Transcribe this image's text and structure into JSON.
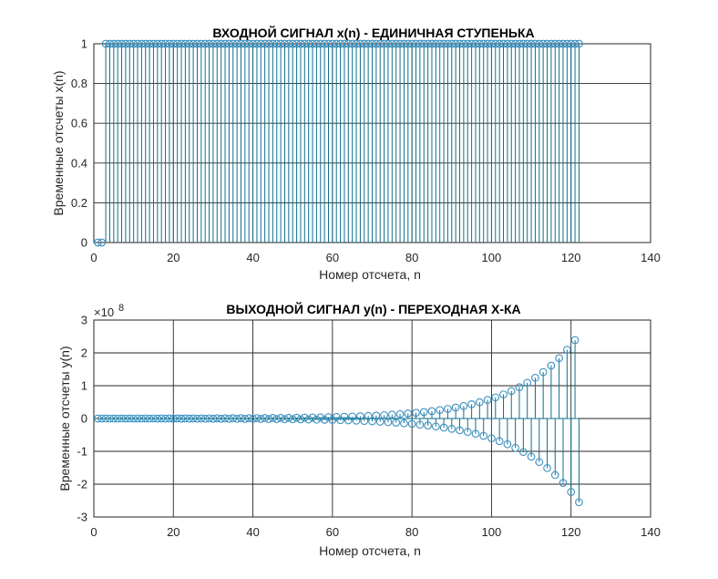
{
  "colors": {
    "stem": "#0e6f8a",
    "marker": "#3a8fbf",
    "axis": "#262626",
    "background": "#ffffff"
  },
  "chart_data": [
    {
      "type": "stem",
      "title": "ВХОДНОЙ СИГНАЛ x(n)  - ЕДИНИЧНАЯ СТУПЕНЬКА",
      "xlabel": "Номер отсчета, n",
      "ylabel": "Временные отсчеты x(n)",
      "xlim": [
        0,
        140
      ],
      "ylim": [
        0,
        1
      ],
      "xticks": [
        "0",
        "20",
        "40",
        "60",
        "80",
        "100",
        "120",
        "140"
      ],
      "yticks": [
        "0",
        "0.2",
        "0.4",
        "0.6",
        "0.8",
        "1"
      ],
      "grid": true,
      "exponent_label": "",
      "n_start": 1,
      "n_end": 122,
      "values_rule": "x(n) = 0 for n = 1, 2; x(n) = 1 for n = 3 … 122",
      "zero_until": 2,
      "step_value": 1
    },
    {
      "type": "stem",
      "title": "ВЫХОДНОЙ СИГНАЛ y(n) - ПЕРЕХОДНАЯ Х-КА",
      "xlabel": "Номер отсчета, n",
      "ylabel": "Временные отсчеты y(n)",
      "xlim": [
        0,
        140
      ],
      "ylim": [
        -300000000.0,
        300000000.0
      ],
      "xticks": [
        "0",
        "20",
        "40",
        "60",
        "80",
        "100",
        "120",
        "140"
      ],
      "yticks": [
        "-3",
        "-2",
        "-1",
        "0",
        "1",
        "2",
        "3"
      ],
      "grid": true,
      "exponent_base": "×10",
      "exponent_power": "8",
      "n_start": 1,
      "n_end": 122,
      "values_rule": "oscillating response with geometrically growing amplitude; sign alternates every sample from n ≈ 100",
      "envelope": {
        "anchor_n": 122,
        "anchor_value": -255000000.0,
        "ratio_per_two_samples": 1.14
      }
    }
  ]
}
